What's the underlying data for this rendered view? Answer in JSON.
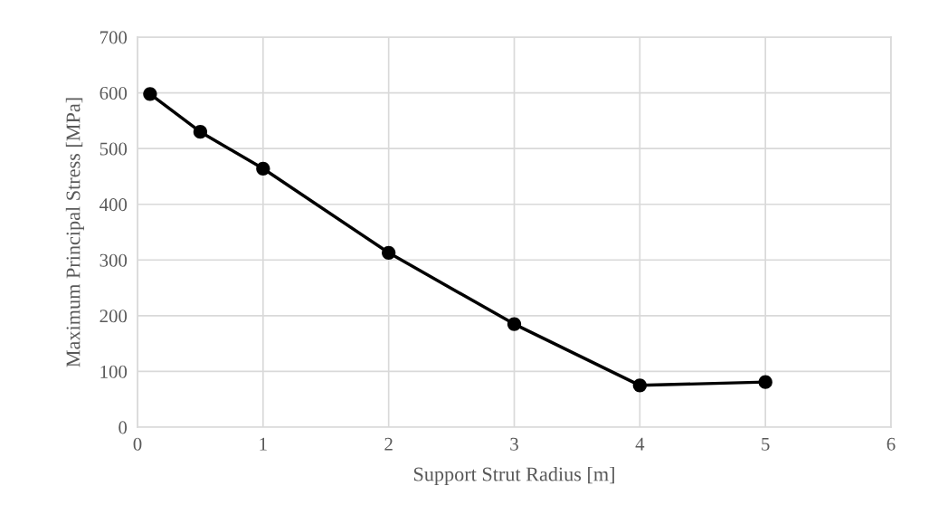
{
  "chart_data": {
    "type": "line",
    "xlabel": "Support Strut Radius [m]",
    "ylabel": "Maximum Principal Stress [MPa]",
    "x": [
      0.1,
      0.5,
      1,
      2,
      3,
      4,
      5
    ],
    "series": [
      {
        "color": "#000000",
        "values": [
          598,
          530,
          464,
          313,
          185,
          75,
          81
        ]
      }
    ],
    "xlim": [
      0,
      6
    ],
    "xticks": [
      0,
      1,
      2,
      3,
      4,
      5,
      6
    ],
    "ylim": [
      0,
      700
    ],
    "yticks": [
      0,
      100,
      200,
      300,
      400,
      500,
      600,
      700
    ],
    "grid": true,
    "marker": "circle",
    "line_style": "solid"
  }
}
